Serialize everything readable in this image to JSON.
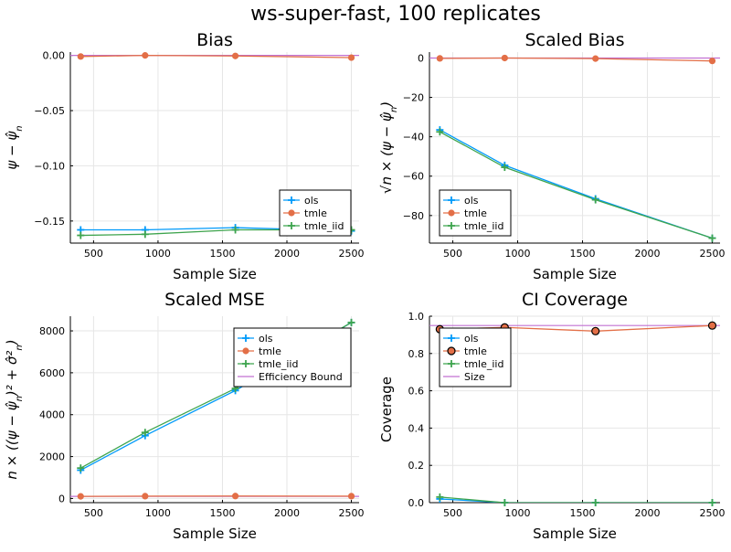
{
  "figure_title": "ws-super-fast, 100 replicates",
  "colors": {
    "ols": "#009AFA",
    "tmle": "#E36F47",
    "tmle_iid": "#3EA44E",
    "bound": "#C271D2"
  },
  "chart_data": [
    {
      "type": "line",
      "title": "Bias",
      "xlabel": "Sample Size",
      "ylabel": "ψ − ψ̂_n",
      "xlim": [
        320,
        2560
      ],
      "ylim": [
        -0.17,
        0.003
      ],
      "xticks": [
        500,
        1000,
        1500,
        2000,
        2500
      ],
      "xtick_labels": [
        "500",
        "1000",
        "1500",
        "2000",
        "2500"
      ],
      "yticks": [
        0.0,
        -0.05,
        -0.1,
        -0.15
      ],
      "ytick_labels": [
        "0.00",
        "−0.05",
        "−0.10",
        "−0.15"
      ],
      "grid": true,
      "legend_position": "bottom-right",
      "x": [
        400,
        900,
        1600,
        2500
      ],
      "series": [
        {
          "name": "ols",
          "marker": "cross",
          "values": [
            -0.158,
            -0.158,
            -0.156,
            -0.159
          ]
        },
        {
          "name": "tmle",
          "marker": "circle",
          "values": [
            -0.001,
            0.0,
            -0.0005,
            -0.002
          ]
        },
        {
          "name": "tmle_iid",
          "marker": "cross",
          "values": [
            -0.163,
            -0.162,
            -0.158,
            -0.158
          ]
        }
      ],
      "hlines": [
        {
          "legend": false,
          "value": 0.0
        }
      ]
    },
    {
      "type": "line",
      "title": "Scaled Bias",
      "xlabel": "Sample Size",
      "ylabel": "√n × (ψ − ψ̂_n)",
      "xlim": [
        320,
        2560
      ],
      "ylim": [
        -94,
        3
      ],
      "xticks": [
        500,
        1000,
        1500,
        2000,
        2500
      ],
      "xtick_labels": [
        "500",
        "1000",
        "1500",
        "2000",
        "2500"
      ],
      "yticks": [
        0,
        -20,
        -40,
        -60,
        -80
      ],
      "ytick_labels": [
        "0",
        "−20",
        "−40",
        "−60",
        "−80"
      ],
      "grid": true,
      "legend_position": "bottom-left",
      "x": [
        400,
        900,
        1600,
        2500
      ],
      "series": [
        {
          "name": "ols",
          "marker": "cross",
          "values": [
            -36.5,
            -54.5,
            -71.5,
            -91.5
          ]
        },
        {
          "name": "tmle",
          "marker": "circle",
          "values": [
            -0.2,
            0.0,
            -0.3,
            -1.5
          ]
        },
        {
          "name": "tmle_iid",
          "marker": "cross",
          "values": [
            -37.5,
            -55.5,
            -72.0,
            -91.5
          ]
        }
      ],
      "hlines": [
        {
          "legend": false,
          "value": 0.0
        }
      ]
    },
    {
      "type": "line",
      "title": "Scaled MSE",
      "xlabel": "Sample Size",
      "ylabel": "n × ((ψ − ψ̂_n)² + σ̂²_n)",
      "xlim": [
        320,
        2560
      ],
      "ylim": [
        -200,
        8700
      ],
      "xticks": [
        500,
        1000,
        1500,
        2000,
        2500
      ],
      "xtick_labels": [
        "500",
        "1000",
        "1500",
        "2000",
        "2500"
      ],
      "yticks": [
        0,
        2000,
        4000,
        6000,
        8000
      ],
      "ytick_labels": [
        "0",
        "2000",
        "4000",
        "6000",
        "8000"
      ],
      "grid": true,
      "legend_position": "top-right",
      "x": [
        400,
        900,
        1600,
        2500
      ],
      "series": [
        {
          "name": "ols",
          "marker": "cross",
          "values": [
            1350,
            3000,
            5150,
            8400
          ]
        },
        {
          "name": "tmle",
          "marker": "circle",
          "values": [
            100,
            110,
            115,
            110
          ]
        },
        {
          "name": "tmle_iid",
          "marker": "cross",
          "values": [
            1450,
            3150,
            5250,
            8400
          ]
        }
      ],
      "hlines": [
        {
          "name": "Efficiency Bound",
          "legend": true,
          "value": 100
        }
      ]
    },
    {
      "type": "line",
      "title": "CI Coverage",
      "xlabel": "Sample Size",
      "ylabel": "Coverage",
      "xlim": [
        320,
        2560
      ],
      "ylim": [
        0.0,
        1.0
      ],
      "xticks": [
        500,
        1000,
        1500,
        2000,
        2500
      ],
      "xtick_labels": [
        "500",
        "1000",
        "1500",
        "2000",
        "2500"
      ],
      "yticks": [
        0.0,
        0.2,
        0.4,
        0.6,
        0.8,
        1.0
      ],
      "ytick_labels": [
        "0.0",
        "0.2",
        "0.4",
        "0.6",
        "0.8",
        "1.0"
      ],
      "grid": true,
      "legend_position": "top-left",
      "x": [
        400,
        900,
        1600,
        2500
      ],
      "series": [
        {
          "name": "ols",
          "marker": "cross",
          "values": [
            0.02,
            0.0,
            0.0,
            0.0
          ]
        },
        {
          "name": "tmle",
          "marker": "circle",
          "big": true,
          "values": [
            0.93,
            0.94,
            0.92,
            0.95
          ]
        },
        {
          "name": "tmle_iid",
          "marker": "cross",
          "values": [
            0.03,
            0.0,
            0.0,
            0.0
          ]
        }
      ],
      "hlines": [
        {
          "name": "Size",
          "legend": true,
          "value": 0.95
        }
      ]
    }
  ]
}
